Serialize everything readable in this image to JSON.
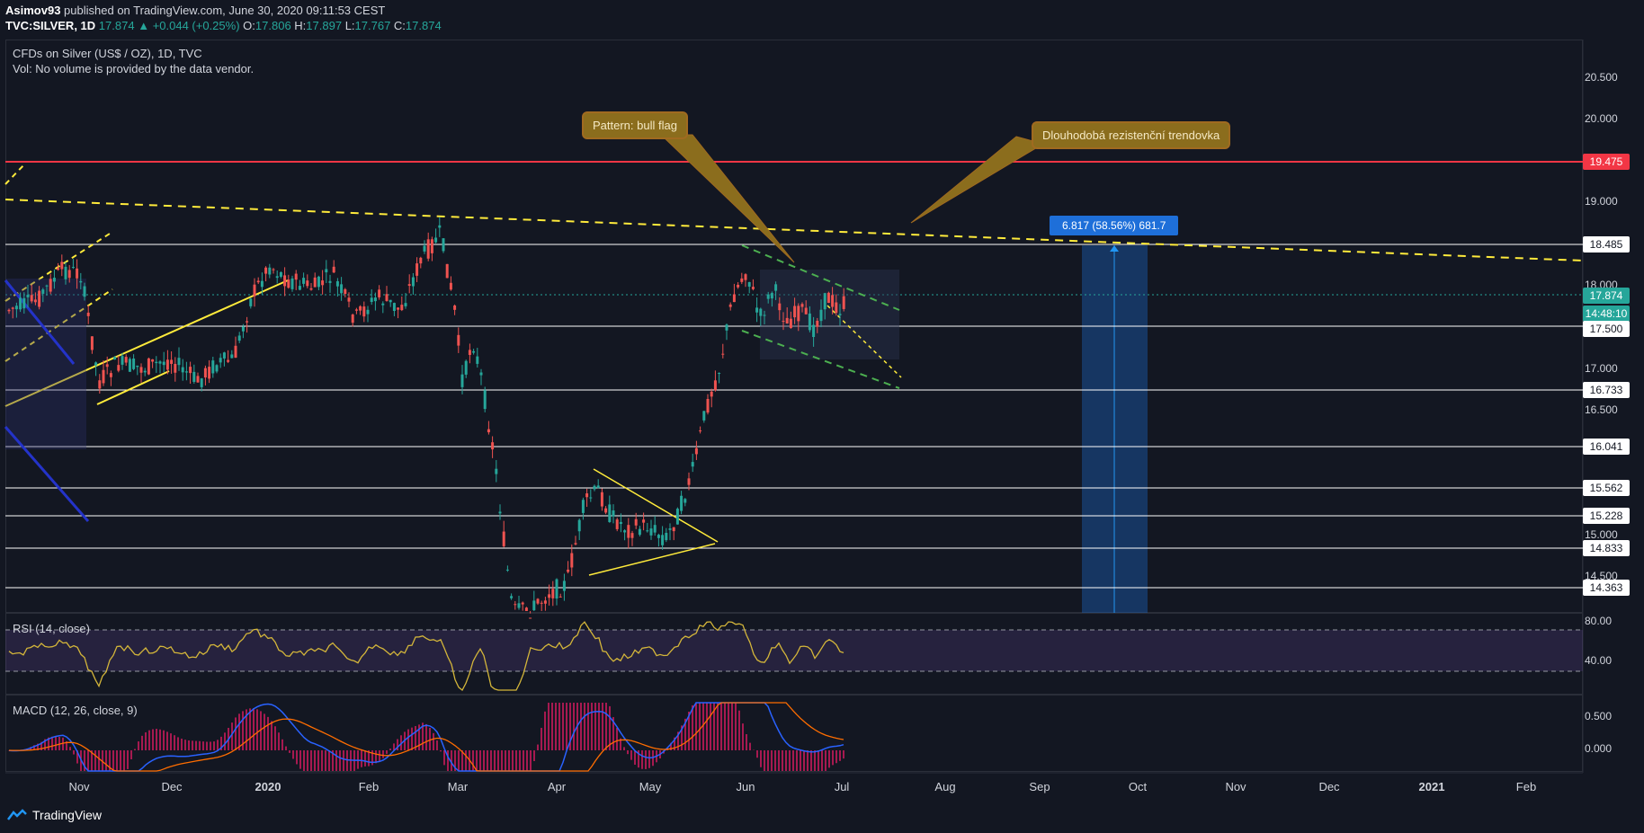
{
  "header": {
    "publisher": "Asimov93",
    "published_text": "published on TradingView.com, June 30, 2020 09:11:53 CEST",
    "symbol": "TVC:SILVER, 1D",
    "last": "17.874",
    "change": "+0.044 (+0.25%)",
    "o_label": "O:",
    "o": "17.806",
    "h_label": "H:",
    "h": "17.897",
    "l_label": "L:",
    "l": "17.767",
    "c_label": "C:",
    "c": "17.874"
  },
  "legend": {
    "title": "CFDs on Silver (US$ / OZ), 1D, TVC",
    "vol": "Vol: No volume is provided by the data vendor.",
    "rsi": "RSI (14, close)",
    "macd": "MACD (12, 26, close, 9)"
  },
  "annotations": {
    "bull_flag": "Pattern: bull flag",
    "trendline": "Dlouhodobá rezistenční trendovka",
    "measure": "6.817 (58.56%) 681.7"
  },
  "price_axis": {
    "ticks": [
      "20.500",
      "20.000",
      "19.000",
      "18.000",
      "17.000",
      "16.500",
      "15.000",
      "14.500"
    ],
    "tags": {
      "resistance": "19.475",
      "level_18485": "18.485",
      "last": "17.874",
      "countdown": "14:48:10",
      "level_17500": "17.500",
      "level_16733": "16.733",
      "level_16041": "16.041",
      "level_15562": "15.562",
      "level_15228": "15.228",
      "level_14833": "14.833",
      "level_14363": "14.363"
    }
  },
  "rsi_axis": {
    "ticks": [
      "80.00",
      "40.00"
    ]
  },
  "macd_axis": {
    "ticks": [
      "0.500",
      "0.000"
    ]
  },
  "time_axis": [
    "Nov",
    "Dec",
    "2020",
    "Feb",
    "Mar",
    "Apr",
    "May",
    "Jun",
    "Jul",
    "Aug",
    "Sep",
    "Oct",
    "Nov",
    "Dec",
    "2021",
    "Feb"
  ],
  "brand": "TradingView",
  "colors": {
    "up": "#26a69a",
    "down": "#ef5350",
    "resistance": "#f23645",
    "trend": "#ffeb3b",
    "flag": "#4caf50",
    "rsi": "#d4b63a",
    "macd": "#2962ff",
    "signal": "#ff6d00",
    "hist_pos": "#d81b60"
  },
  "chart_data": {
    "type": "candlestick",
    "price_levels": [
      19.475,
      18.485,
      17.5,
      16.733,
      16.041,
      15.562,
      15.228,
      14.833,
      14.363
    ],
    "last_price": 17.874,
    "rsi_bands": [
      70,
      30
    ],
    "measure": {
      "change": 6.817,
      "percent": 58.56,
      "ticks": 681.7
    }
  }
}
